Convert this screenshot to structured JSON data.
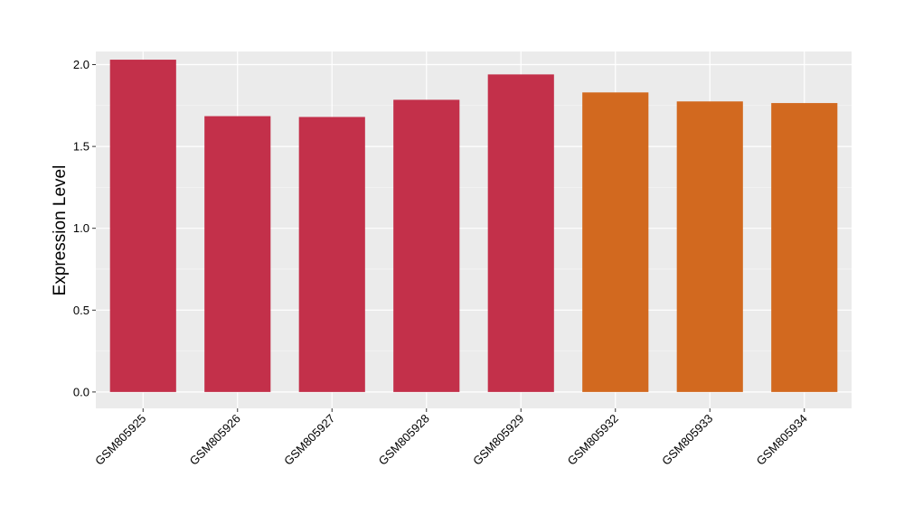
{
  "chart_data": {
    "type": "bar",
    "title": "",
    "xlabel": "",
    "ylabel": "Expression Level",
    "ylim": [
      -0.1,
      2.08
    ],
    "yticks": [
      "0.0",
      "0.5",
      "1.0",
      "1.5",
      "2.0"
    ],
    "grid": true,
    "legend": "none",
    "categories": [
      "GSM805925",
      "GSM805926",
      "GSM805927",
      "GSM805928",
      "GSM805929",
      "GSM805932",
      "GSM805933",
      "GSM805934"
    ],
    "values": [
      2.03,
      1.685,
      1.68,
      1.785,
      1.94,
      1.83,
      1.775,
      1.765
    ],
    "colors": [
      "#c3304a",
      "#c3304a",
      "#c3304a",
      "#c3304a",
      "#c3304a",
      "#d2691f",
      "#d2691f",
      "#d2691f"
    ]
  }
}
